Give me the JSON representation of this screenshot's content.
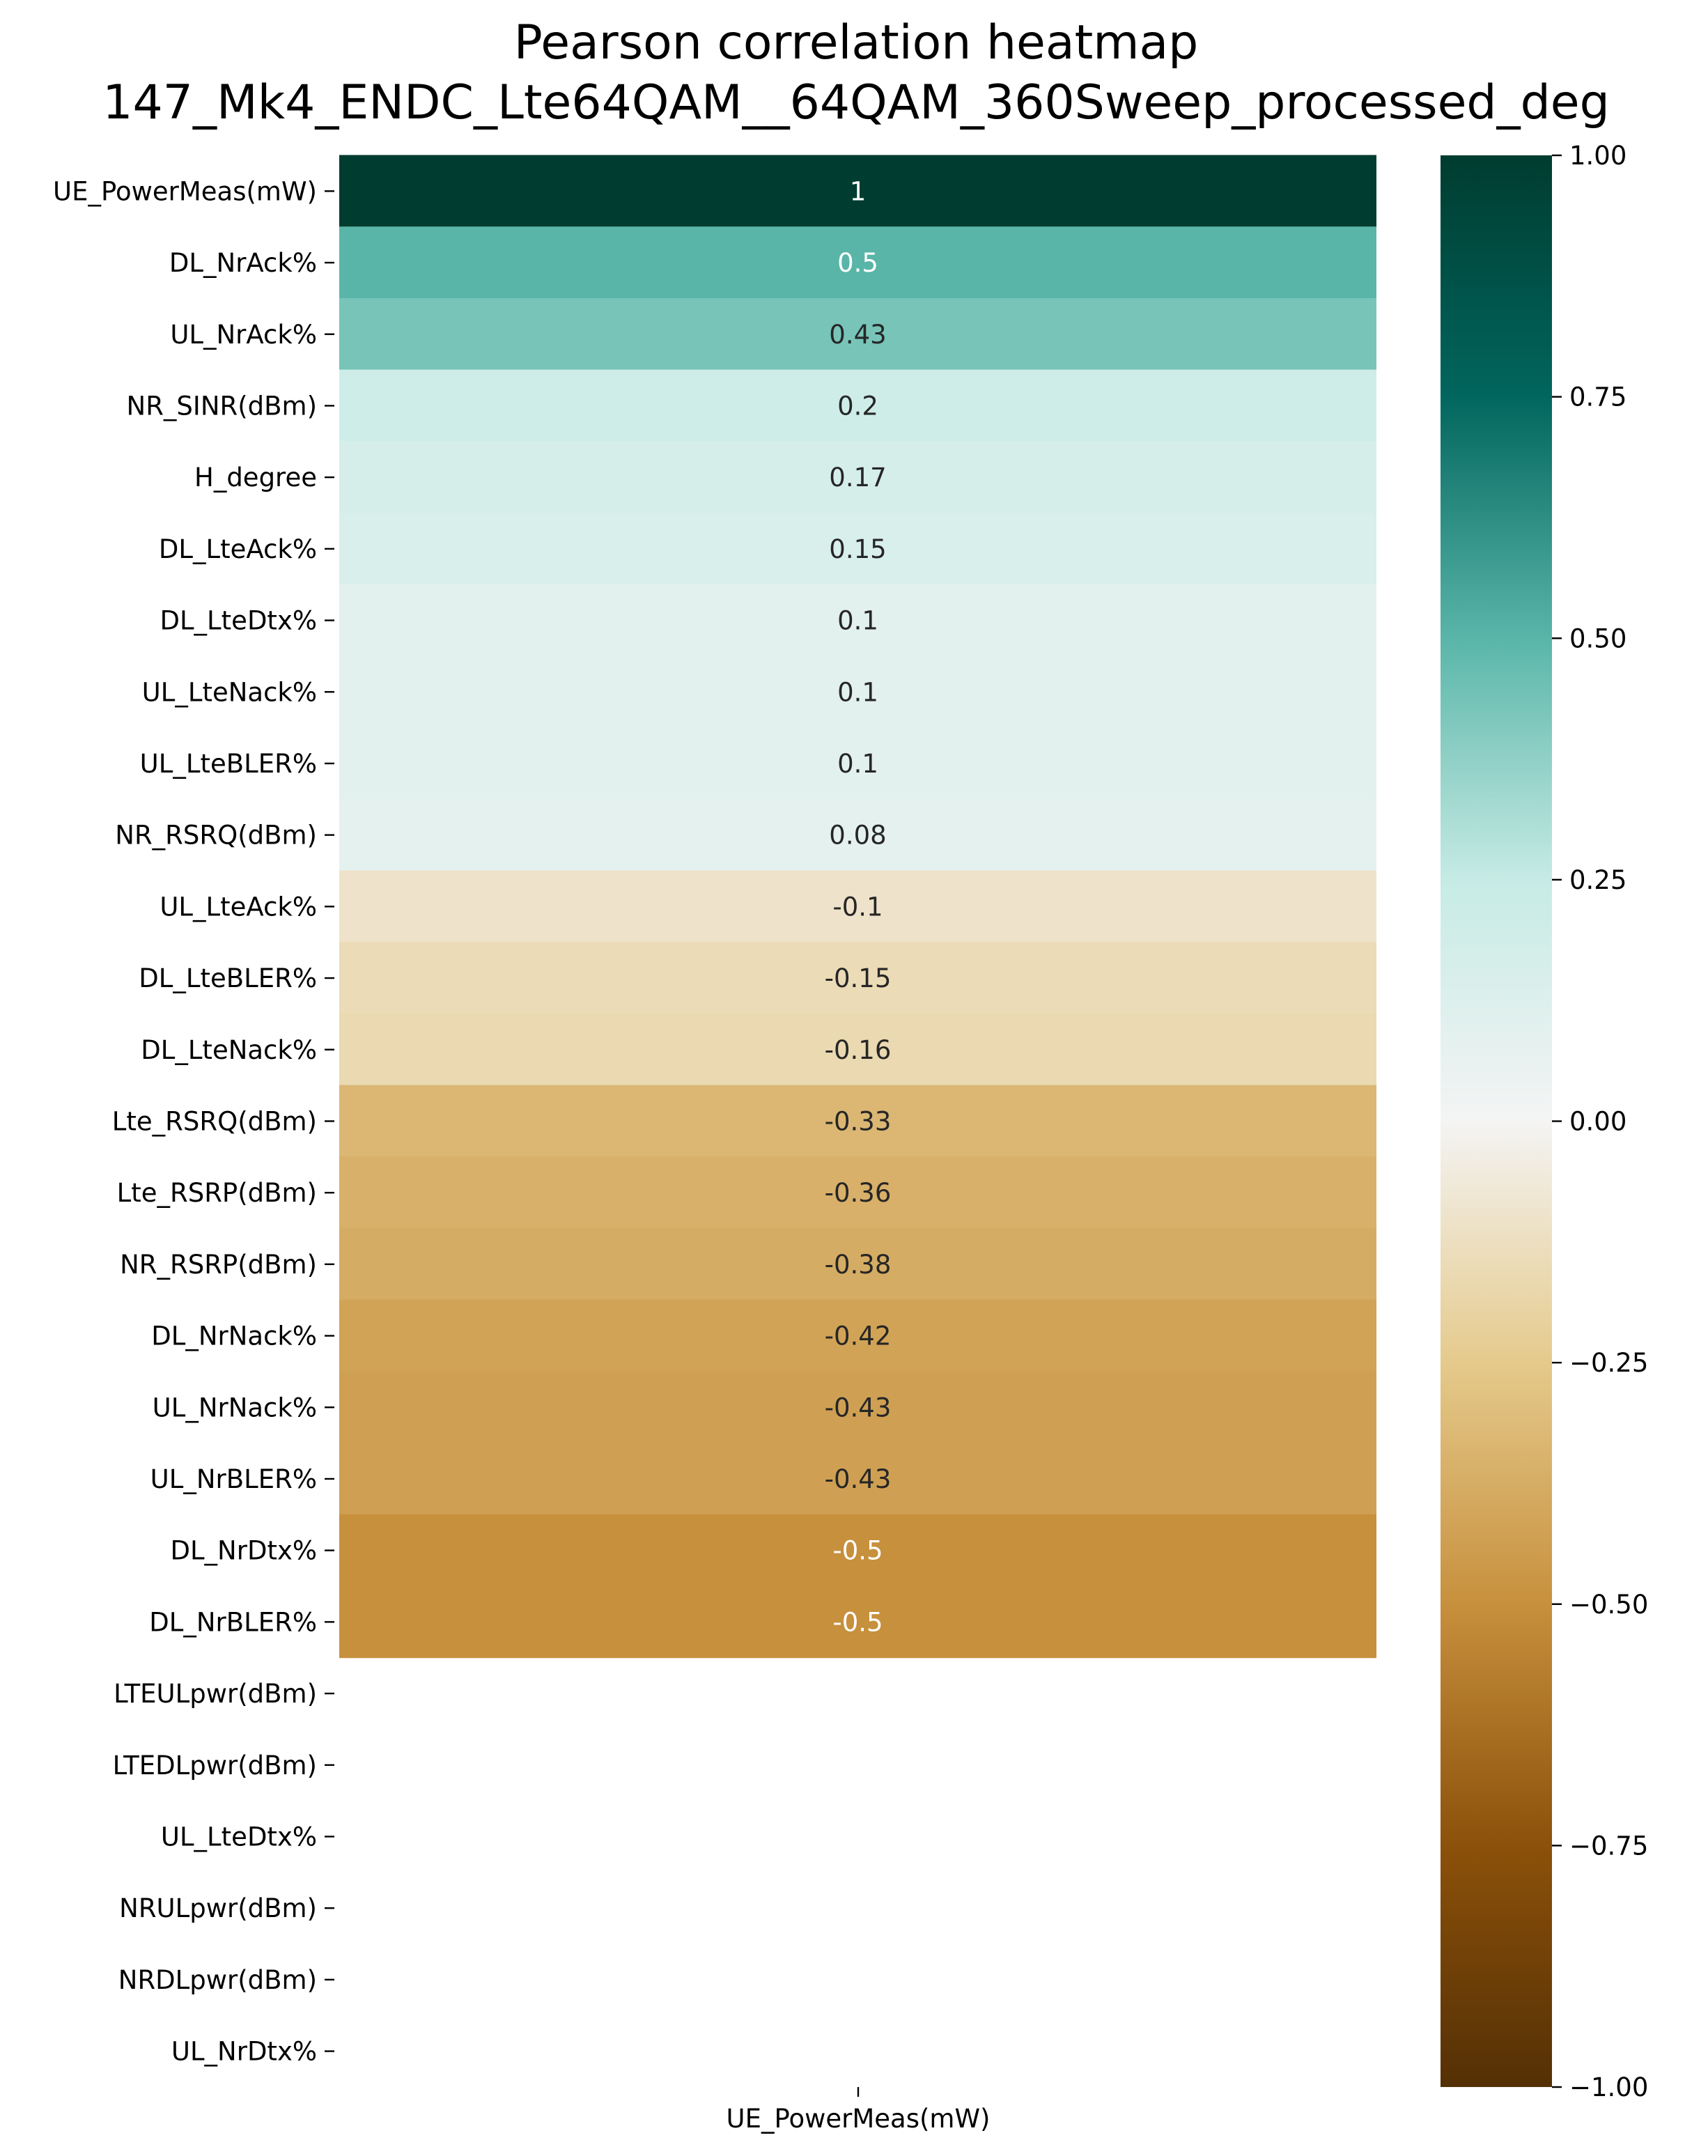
{
  "chart_data": {
    "type": "heatmap",
    "title_lines": [
      "Pearson correlation heatmap",
      "147_Mk4_ENDC_Lte64QAM__64QAM_360Sweep_processed_deg"
    ],
    "columns": [
      "UE_PowerMeas(mW)"
    ],
    "rows": [
      {
        "label": "UE_PowerMeas(mW)",
        "value": 1,
        "text": "1"
      },
      {
        "label": "DL_NrAck%",
        "value": 0.5,
        "text": "0.5"
      },
      {
        "label": "UL_NrAck%",
        "value": 0.43,
        "text": "0.43"
      },
      {
        "label": "NR_SINR(dBm)",
        "value": 0.2,
        "text": "0.2"
      },
      {
        "label": "H_degree",
        "value": 0.17,
        "text": "0.17"
      },
      {
        "label": "DL_LteAck%",
        "value": 0.15,
        "text": "0.15"
      },
      {
        "label": "DL_LteDtx%",
        "value": 0.1,
        "text": "0.1"
      },
      {
        "label": "UL_LteNack%",
        "value": 0.1,
        "text": "0.1"
      },
      {
        "label": "UL_LteBLER%",
        "value": 0.1,
        "text": "0.1"
      },
      {
        "label": "NR_RSRQ(dBm)",
        "value": 0.08,
        "text": "0.08"
      },
      {
        "label": "UL_LteAck%",
        "value": -0.1,
        "text": "-0.1"
      },
      {
        "label": "DL_LteBLER%",
        "value": -0.15,
        "text": "-0.15"
      },
      {
        "label": "DL_LteNack%",
        "value": -0.16,
        "text": "-0.16"
      },
      {
        "label": "Lte_RSRQ(dBm)",
        "value": -0.33,
        "text": "-0.33"
      },
      {
        "label": "Lte_RSRP(dBm)",
        "value": -0.36,
        "text": "-0.36"
      },
      {
        "label": "NR_RSRP(dBm)",
        "value": -0.38,
        "text": "-0.38"
      },
      {
        "label": "DL_NrNack%",
        "value": -0.42,
        "text": "-0.42"
      },
      {
        "label": "UL_NrNack%",
        "value": -0.43,
        "text": "-0.43"
      },
      {
        "label": "UL_NrBLER%",
        "value": -0.43,
        "text": "-0.43"
      },
      {
        "label": "DL_NrDtx%",
        "value": -0.5,
        "text": "-0.5"
      },
      {
        "label": "DL_NrBLER%",
        "value": -0.5,
        "text": "-0.5"
      },
      {
        "label": "LTEULpwr(dBm)",
        "value": null,
        "text": ""
      },
      {
        "label": "LTEDLpwr(dBm) ",
        "value": null,
        "text": ""
      },
      {
        "label": "UL_LteDtx%",
        "value": null,
        "text": ""
      },
      {
        "label": "NRULpwr(dBm)",
        "value": null,
        "text": ""
      },
      {
        "label": "NRDLpwr(dBm)",
        "value": null,
        "text": ""
      },
      {
        "label": "UL_NrDtx%",
        "value": null,
        "text": ""
      }
    ],
    "colorbar": {
      "range": [
        -1.0,
        1.0
      ],
      "ticks": [
        1.0,
        0.75,
        0.5,
        0.25,
        0.0,
        -0.25,
        -0.5,
        -0.75,
        -1.0
      ],
      "tick_labels": [
        "1.00",
        "0.75",
        "0.50",
        "0.25",
        "0.00",
        "−0.25",
        "−0.50",
        "−0.75",
        "−1.00"
      ],
      "colormap": "BrBG",
      "colormap_stops": [
        {
          "v": -1.0,
          "c": "#543005"
        },
        {
          "v": -0.75,
          "c": "#8c510a"
        },
        {
          "v": -0.5,
          "c": "#c7903d"
        },
        {
          "v": -0.25,
          "c": "#e5ca8c"
        },
        {
          "v": 0.0,
          "c": "#f4f4f4"
        },
        {
          "v": 0.25,
          "c": "#c6ebe5"
        },
        {
          "v": 0.5,
          "c": "#59b5a8"
        },
        {
          "v": 0.75,
          "c": "#01665e"
        },
        {
          "v": 1.0,
          "c": "#003c30"
        }
      ]
    },
    "annotation_colors": {
      "light": "#ffffff",
      "dark": "#262626"
    }
  }
}
